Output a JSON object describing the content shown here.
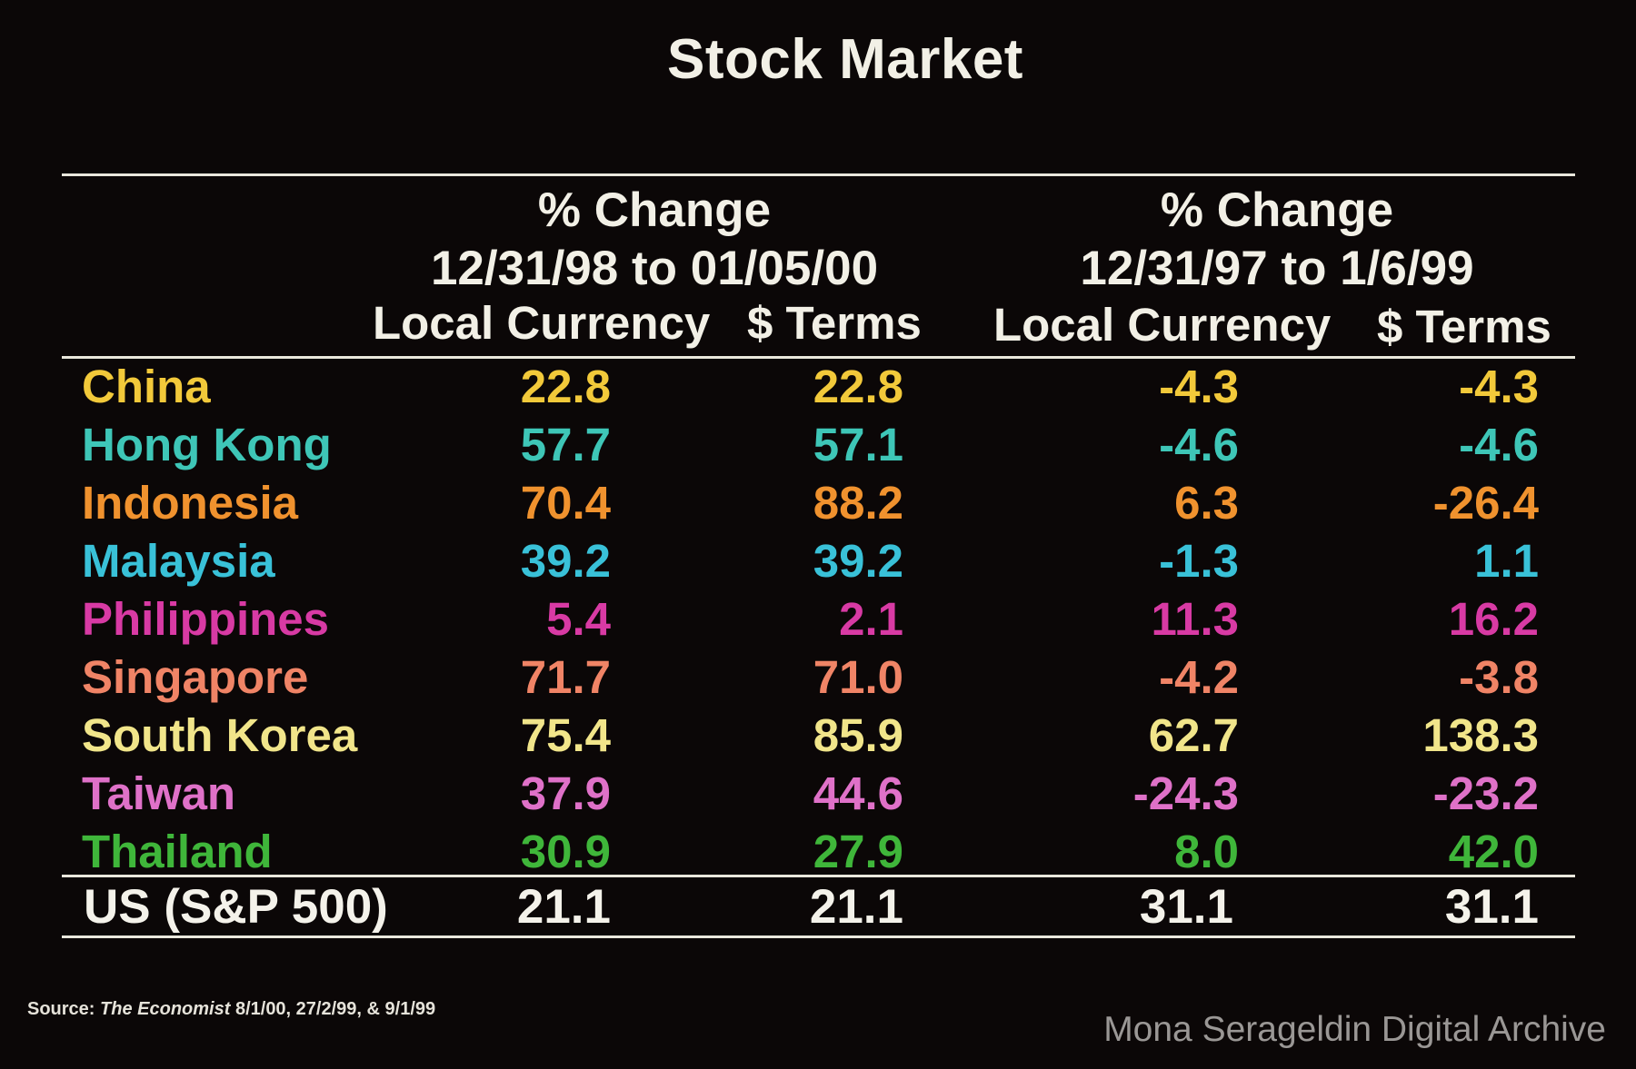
{
  "title": "Stock Market",
  "groups": [
    {
      "heading_line1": "% Change",
      "heading_line2": "12/31/98 to 01/05/00",
      "col_local": "Local Currency",
      "col_dollar": "$ Terms"
    },
    {
      "heading_line1": "% Change",
      "heading_line2": "12/31/97 to 1/6/99",
      "col_local": "Local Currency",
      "col_dollar": "$ Terms"
    }
  ],
  "rows": [
    {
      "name": "China",
      "v1": "22.8",
      "v2": "22.8",
      "v3": "-4.3",
      "v4": "-4.3",
      "color": "#f2c93a"
    },
    {
      "name": "Hong Kong",
      "v1": "57.7",
      "v2": "57.1",
      "v3": "-4.6",
      "v4": "-4.6",
      "color": "#3ec6b7"
    },
    {
      "name": "Indonesia",
      "v1": "70.4",
      "v2": "88.2",
      "v3": "6.3",
      "v4": "-26.4",
      "color": "#f0922e"
    },
    {
      "name": "Malaysia",
      "v1": "39.2",
      "v2": "39.2",
      "v3": "-1.3",
      "v4": "1.1",
      "color": "#39c1d8"
    },
    {
      "name": "Philippines",
      "v1": "5.4",
      "v2": "2.1",
      "v3": "11.3",
      "v4": "16.2",
      "color": "#d83aa4"
    },
    {
      "name": "Singapore",
      "v1": "71.7",
      "v2": "71.0",
      "v3": "-4.2",
      "v4": "-3.8",
      "color": "#f08466"
    },
    {
      "name": "South Korea",
      "v1": "75.4",
      "v2": "85.9",
      "v3": "62.7",
      "v4": "138.3",
      "color": "#f1e58a"
    },
    {
      "name": "Taiwan",
      "v1": "37.9",
      "v2": "44.6",
      "v3": "-24.3",
      "v4": "-23.2",
      "color": "#df71c8"
    },
    {
      "name": "Thailand",
      "v1": "30.9",
      "v2": "27.9",
      "v3": "8.0",
      "v4": "42.0",
      "color": "#3fb63a"
    }
  ],
  "us": {
    "name": "US (S&P 500)",
    "v1": "21.1",
    "v2": "21.1",
    "v3": "31.1",
    "v4": "31.1"
  },
  "source": {
    "label": "Source:",
    "publication": "The Economist",
    "dates": "8/1/00, 27/2/99, & 9/1/99"
  },
  "watermark": "Mona Serageldin Digital Archive",
  "chart_data": {
    "type": "table",
    "title": "Stock Market",
    "columns": [
      "% Change 12/31/98 to 01/05/00 Local Currency",
      "% Change 12/31/98 to 01/05/00 $ Terms",
      "% Change 12/31/97 to 1/6/99 Local Currency",
      "% Change 12/31/97 to 1/6/99 $ Terms"
    ],
    "rows": [
      [
        "China",
        22.8,
        22.8,
        -4.3,
        -4.3
      ],
      [
        "Hong Kong",
        57.7,
        57.1,
        -4.6,
        -4.6
      ],
      [
        "Indonesia",
        70.4,
        88.2,
        6.3,
        -26.4
      ],
      [
        "Malaysia",
        39.2,
        39.2,
        -1.3,
        1.1
      ],
      [
        "Philippines",
        5.4,
        2.1,
        11.3,
        16.2
      ],
      [
        "Singapore",
        71.7,
        71.0,
        -4.2,
        -3.8
      ],
      [
        "South Korea",
        75.4,
        85.9,
        62.7,
        138.3
      ],
      [
        "Taiwan",
        37.9,
        44.6,
        -24.3,
        -23.2
      ],
      [
        "Thailand",
        30.9,
        27.9,
        8.0,
        42.0
      ],
      [
        "US (S&P 500)",
        21.1,
        21.1,
        31.1,
        31.1
      ]
    ]
  }
}
